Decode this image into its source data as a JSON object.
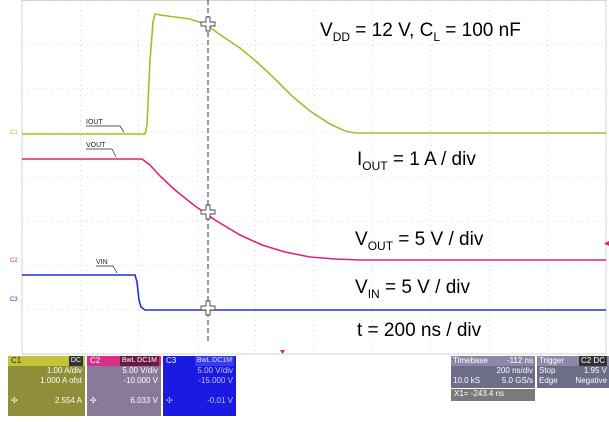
{
  "annotations": {
    "vdd": {
      "main": "V",
      "sub": "DD",
      "rest": " = 12 V, C",
      "sub2": "L",
      "rest2": " = 100 nF"
    },
    "iout": {
      "main": "I",
      "sub": "OUT",
      "rest": " = 1 A / div"
    },
    "vout": {
      "main": "V",
      "sub": "OUT",
      "rest": " = 5 V / div"
    },
    "vin": {
      "main": "V",
      "sub": "IN",
      "rest": " = 5 V / div"
    },
    "timebase": "t = 200 ns / div"
  },
  "traces": {
    "c1": {
      "label": "IOUT",
      "marker": "C1",
      "color": "#b5b52a"
    },
    "c2": {
      "label": "VOUT",
      "marker": "C2",
      "color": "#e0207a"
    },
    "c3": {
      "label": "VIN",
      "marker": "C3",
      "color": "#2030d8"
    }
  },
  "channels": [
    {
      "id": "C1",
      "badge": "DC",
      "scale": "1.00 A/div",
      "offset": "1.000 A ofst",
      "value": "2.554 A",
      "color": "#8f8f3a",
      "hdr": "#c4c43a"
    },
    {
      "id": "C2",
      "badge": "BwL DC1M",
      "scale": "5.00 V/div",
      "offset": "-10.000 V",
      "value": "6.033 V",
      "color": "#8a7a9a",
      "hdr": "#d8308a"
    },
    {
      "id": "C3",
      "badge": "BwL DC1M",
      "scale": "5.00 V/div",
      "offset": "-15.000 V",
      "value": "-0.01 V",
      "color": "#1a1ae0",
      "hdr": "#1a1ae0"
    }
  ],
  "timebase_box": {
    "title": "Timebase",
    "offset": "-112 ns",
    "scale": "200 ns/div",
    "samples": "10.0 kS",
    "rate": "5.0 GS/s"
  },
  "trigger_box": {
    "title": "Trigger",
    "badge": "C2 DC",
    "mode": "Stop",
    "level": "1.95 V",
    "type": "Edge",
    "slope": "Negative"
  },
  "cursor": {
    "readout": "X1=  -243.4 ns"
  },
  "colors": {
    "grid": "#bdbdbd",
    "cursor": "#333333",
    "panel": "#6d6d8a",
    "readout": "#7a7a7a"
  }
}
